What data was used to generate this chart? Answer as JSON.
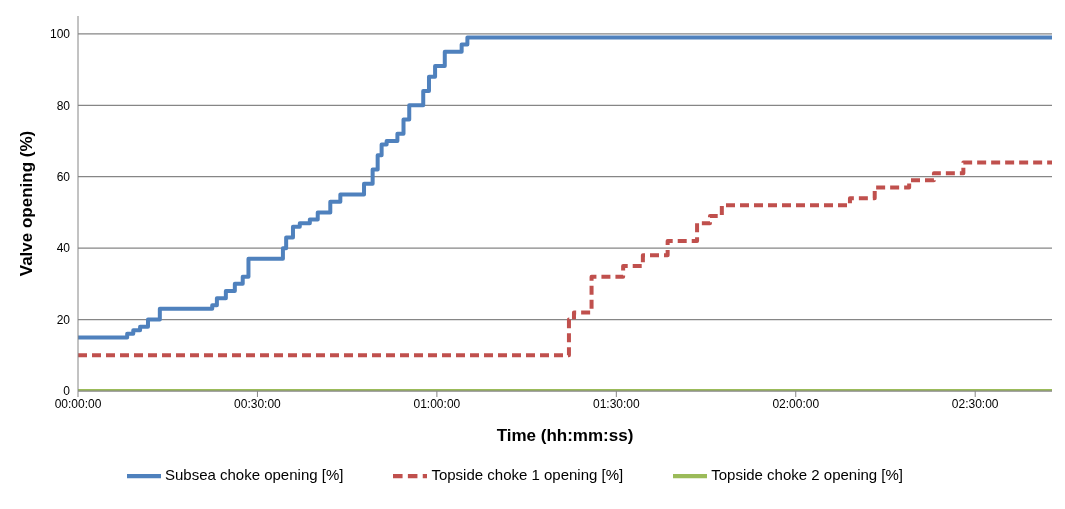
{
  "chart_data": {
    "type": "step",
    "xlabel": "Time (hh:mm:ss)",
    "ylabel": "Valve opening (%)",
    "xlim": [
      0,
      2.714
    ],
    "xticks": [
      {
        "value": 0,
        "label": "00:00:00"
      },
      {
        "value": 0.5,
        "label": "00:30:00"
      },
      {
        "value": 1,
        "label": "01:00:00"
      },
      {
        "value": 1.5,
        "label": "01:30:00"
      },
      {
        "value": 2,
        "label": "02:00:00"
      },
      {
        "value": 2.5,
        "label": "02:30:00"
      }
    ],
    "ylim": [
      0,
      105
    ],
    "yticks": [
      0,
      20,
      40,
      60,
      80,
      100
    ],
    "grid": "y",
    "legend": "bottom",
    "marker": "none",
    "series": [
      {
        "name": "Subsea choke opening [%]",
        "color": "#4f81bd",
        "line_style": "solid",
        "x": [
          0,
          0.137,
          0.154,
          0.173,
          0.195,
          0.228,
          0.374,
          0.387,
          0.412,
          0.437,
          0.459,
          0.475,
          0.571,
          0.58,
          0.599,
          0.618,
          0.646,
          0.668,
          0.703,
          0.731,
          0.797,
          0.821,
          0.835,
          0.846,
          0.86,
          0.89,
          0.907,
          0.923,
          0.962,
          0.978,
          0.995,
          1.022,
          1.069,
          1.085,
          2.714
        ],
        "values": [
          15,
          16,
          17,
          18,
          20,
          23,
          24,
          26,
          28,
          30,
          32,
          37,
          40,
          43,
          46,
          47,
          48,
          50,
          53,
          55,
          58,
          62,
          66,
          69,
          70,
          72,
          76,
          80,
          84,
          88,
          91,
          95,
          97,
          99,
          99
        ]
      },
      {
        "name": "Topside choke 1 opening [%]",
        "color": "#c0504d",
        "line_style": "dashed",
        "x": [
          0,
          1.346,
          1.368,
          1.382,
          1.431,
          1.519,
          1.574,
          1.643,
          1.725,
          1.761,
          1.794,
          2.151,
          2.22,
          2.316,
          2.385,
          2.467,
          2.714
        ],
        "values": [
          10,
          10,
          20,
          22,
          32,
          35,
          38,
          42,
          47,
          49,
          52,
          54,
          57,
          59,
          61,
          64,
          64
        ]
      },
      {
        "name": "Topside choke 2 opening [%]",
        "color": "#9bbb59",
        "line_style": "solid",
        "x": [
          0,
          2.714
        ],
        "values": [
          0,
          0
        ]
      }
    ]
  }
}
